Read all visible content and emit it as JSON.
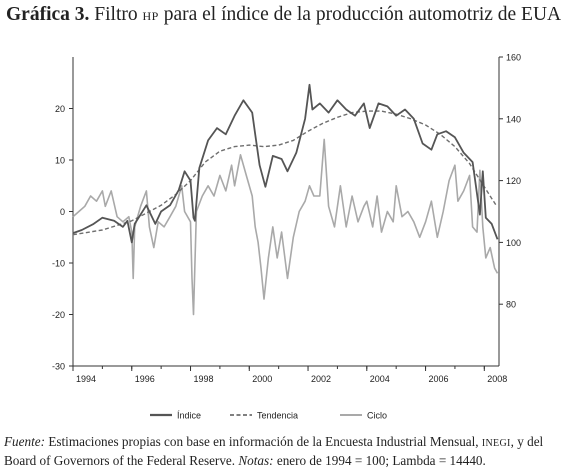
{
  "title": {
    "label": "Gráfica 3.",
    "text_a": "Filtro",
    "text_small": "HP",
    "text_b": "para el índice de la producción automotriz de EUA"
  },
  "note": {
    "source_label": "Fuente:",
    "source_text_a": "Estimaciones propias con base en información de la Encuesta Industrial Mensual,",
    "source_small": "INEGI",
    "source_text_b": ", y del Board of Governors of the Federal Reserve.",
    "notes_label": "Notas:",
    "notes_text": "enero de 1994 = 100; Lambda = 14440."
  },
  "colors": {
    "indice": "#555555",
    "tendencia": "#6e6e6e",
    "ciclo": "#a9a9a9"
  },
  "chart_data": {
    "type": "line",
    "x_range": [
      1994.0,
      2008.5
    ],
    "x_ticks": [
      "1994",
      "1996",
      "1998",
      "2000",
      "2002",
      "2004",
      "2006",
      "2008"
    ],
    "y_left": {
      "range": [
        -30,
        30
      ],
      "ticks": [
        "20",
        "10",
        "0",
        "-10",
        "-20",
        "-30"
      ]
    },
    "y_right": {
      "range": [
        60,
        160
      ],
      "ticks": [
        "160",
        "140",
        "120",
        "100",
        "80"
      ]
    },
    "legend_position": "bottom",
    "series": [
      {
        "name": "Índice",
        "axis": "right",
        "style": "solid",
        "points": [
          [
            1994.0,
            103
          ],
          [
            1994.3,
            104
          ],
          [
            1994.7,
            106
          ],
          [
            1995.0,
            108
          ],
          [
            1995.4,
            107
          ],
          [
            1995.7,
            105
          ],
          [
            1995.85,
            107
          ],
          [
            1996.0,
            100
          ],
          [
            1996.1,
            106
          ],
          [
            1996.5,
            112
          ],
          [
            1996.8,
            106
          ],
          [
            1997.0,
            110
          ],
          [
            1997.3,
            112
          ],
          [
            1997.6,
            117
          ],
          [
            1997.8,
            123
          ],
          [
            1998.0,
            120
          ],
          [
            1998.1,
            108
          ],
          [
            1998.15,
            107
          ],
          [
            1998.3,
            124
          ],
          [
            1998.6,
            133
          ],
          [
            1998.9,
            137
          ],
          [
            1999.2,
            135
          ],
          [
            1999.5,
            141
          ],
          [
            1999.8,
            146
          ],
          [
            2000.1,
            142
          ],
          [
            2000.2,
            135
          ],
          [
            2000.35,
            125
          ],
          [
            2000.55,
            118
          ],
          [
            2000.8,
            128
          ],
          [
            2001.1,
            127
          ],
          [
            2001.3,
            123
          ],
          [
            2001.6,
            129
          ],
          [
            2001.9,
            140
          ],
          [
            2002.05,
            151
          ],
          [
            2002.15,
            143
          ],
          [
            2002.4,
            145
          ],
          [
            2002.7,
            142
          ],
          [
            2003.0,
            146
          ],
          [
            2003.3,
            143
          ],
          [
            2003.6,
            141
          ],
          [
            2003.9,
            145
          ],
          [
            2004.1,
            137
          ],
          [
            2004.4,
            145
          ],
          [
            2004.7,
            144
          ],
          [
            2005.0,
            141
          ],
          [
            2005.3,
            143
          ],
          [
            2005.6,
            140
          ],
          [
            2005.9,
            132
          ],
          [
            2006.2,
            130
          ],
          [
            2006.4,
            135
          ],
          [
            2006.7,
            136
          ],
          [
            2007.0,
            134
          ],
          [
            2007.3,
            129
          ],
          [
            2007.6,
            126
          ],
          [
            2007.85,
            109
          ],
          [
            2007.95,
            123
          ],
          [
            2008.05,
            108
          ],
          [
            2008.25,
            106
          ],
          [
            2008.45,
            101
          ]
        ]
      },
      {
        "name": "Tendencia",
        "axis": "right",
        "style": "dashed",
        "points": [
          [
            1994.0,
            102.5
          ],
          [
            1995.0,
            104
          ],
          [
            1996.0,
            107
          ],
          [
            1997.0,
            112
          ],
          [
            1997.5,
            115.5
          ],
          [
            1998.0,
            120
          ],
          [
            1998.5,
            126
          ],
          [
            1999.0,
            129.5
          ],
          [
            1999.5,
            131
          ],
          [
            2000.0,
            131.5
          ],
          [
            2000.5,
            131
          ],
          [
            2001.0,
            131.5
          ],
          [
            2001.5,
            133
          ],
          [
            2002.0,
            136
          ],
          [
            2002.5,
            138.5
          ],
          [
            2003.0,
            140.5
          ],
          [
            2003.5,
            142
          ],
          [
            2004.0,
            142.5
          ],
          [
            2004.5,
            142.5
          ],
          [
            2005.0,
            141.5
          ],
          [
            2005.5,
            140
          ],
          [
            2006.0,
            138
          ],
          [
            2006.5,
            135
          ],
          [
            2007.0,
            131
          ],
          [
            2007.5,
            125.5
          ],
          [
            2008.0,
            118
          ],
          [
            2008.4,
            112
          ]
        ]
      },
      {
        "name": "Ciclo",
        "axis": "left",
        "style": "solid",
        "points": [
          [
            1994.0,
            -1
          ],
          [
            1994.2,
            0
          ],
          [
            1994.4,
            1
          ],
          [
            1994.6,
            3
          ],
          [
            1994.8,
            2
          ],
          [
            1995.0,
            4
          ],
          [
            1995.1,
            1
          ],
          [
            1995.3,
            4
          ],
          [
            1995.5,
            -1
          ],
          [
            1995.7,
            -2
          ],
          [
            1995.9,
            -1
          ],
          [
            1996.0,
            -4
          ],
          [
            1996.05,
            -13
          ],
          [
            1996.1,
            -3
          ],
          [
            1996.3,
            1
          ],
          [
            1996.5,
            4
          ],
          [
            1996.6,
            -3
          ],
          [
            1996.75,
            -7
          ],
          [
            1996.9,
            -2
          ],
          [
            1997.1,
            -3
          ],
          [
            1997.3,
            -1
          ],
          [
            1997.5,
            1
          ],
          [
            1997.7,
            5
          ],
          [
            1997.8,
            0
          ],
          [
            1998.0,
            -2
          ],
          [
            1998.05,
            -13
          ],
          [
            1998.1,
            -20
          ],
          [
            1998.2,
            0
          ],
          [
            1998.4,
            3
          ],
          [
            1998.6,
            5
          ],
          [
            1998.8,
            3
          ],
          [
            1999.0,
            7
          ],
          [
            1999.2,
            4
          ],
          [
            1999.4,
            9
          ],
          [
            1999.5,
            5
          ],
          [
            1999.7,
            11
          ],
          [
            1999.9,
            7
          ],
          [
            2000.1,
            3
          ],
          [
            2000.2,
            -3
          ],
          [
            2000.3,
            -6
          ],
          [
            2000.4,
            -11
          ],
          [
            2000.5,
            -17
          ],
          [
            2000.65,
            -9
          ],
          [
            2000.8,
            -3
          ],
          [
            2000.95,
            -9
          ],
          [
            2001.1,
            -4
          ],
          [
            2001.3,
            -13
          ],
          [
            2001.5,
            -5
          ],
          [
            2001.7,
            0
          ],
          [
            2001.9,
            2
          ],
          [
            2002.05,
            5
          ],
          [
            2002.2,
            3
          ],
          [
            2002.4,
            3
          ],
          [
            2002.55,
            14
          ],
          [
            2002.7,
            1
          ],
          [
            2002.9,
            -3
          ],
          [
            2003.1,
            5
          ],
          [
            2003.3,
            -3
          ],
          [
            2003.5,
            3
          ],
          [
            2003.7,
            -2
          ],
          [
            2003.9,
            1
          ],
          [
            2004.0,
            2
          ],
          [
            2004.2,
            -3
          ],
          [
            2004.35,
            3
          ],
          [
            2004.5,
            -4
          ],
          [
            2004.7,
            0
          ],
          [
            2004.9,
            -2
          ],
          [
            2005.0,
            5
          ],
          [
            2005.2,
            -1
          ],
          [
            2005.4,
            0
          ],
          [
            2005.6,
            -2
          ],
          [
            2005.8,
            -5
          ],
          [
            2006.0,
            -2
          ],
          [
            2006.2,
            2
          ],
          [
            2006.4,
            -5
          ],
          [
            2006.6,
            0
          ],
          [
            2006.8,
            6
          ],
          [
            2007.0,
            9
          ],
          [
            2007.1,
            2
          ],
          [
            2007.3,
            4
          ],
          [
            2007.5,
            7
          ],
          [
            2007.6,
            -3
          ],
          [
            2007.75,
            -4
          ],
          [
            2007.85,
            8
          ],
          [
            2007.95,
            -3
          ],
          [
            2008.05,
            -9
          ],
          [
            2008.2,
            -7
          ],
          [
            2008.35,
            -11
          ],
          [
            2008.45,
            -12
          ]
        ]
      }
    ]
  }
}
